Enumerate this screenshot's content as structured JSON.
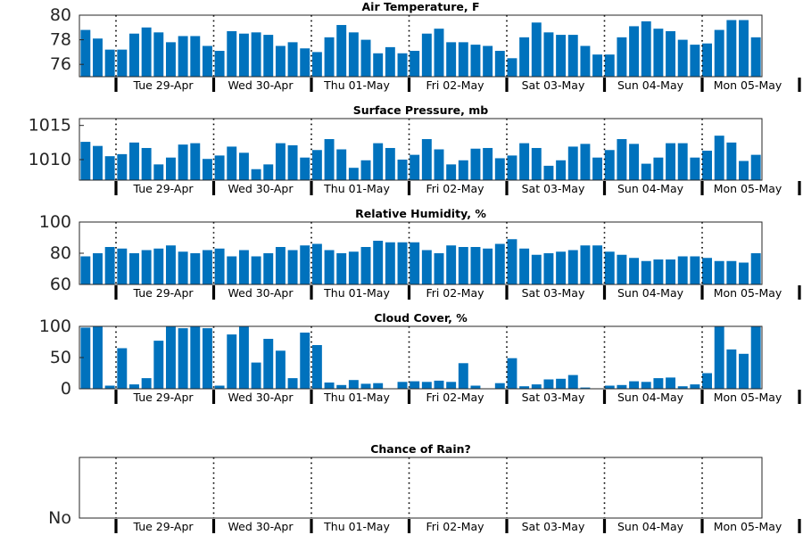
{
  "chart_data": [
    {
      "type": "bar",
      "title": "Air Temperature, F",
      "xlabel": "",
      "ylabel": "",
      "ylim": [
        75,
        80
      ],
      "yticks": [
        76,
        78,
        80
      ],
      "ytick_labels": [
        "76",
        "78",
        "80"
      ],
      "color": "#0072BD",
      "grid": false,
      "day_labels": [
        "Tue 29-Apr",
        "Wed 30-Apr",
        "Thu 01-May",
        "Fri 02-May",
        "Sat 03-May",
        "Sun 04-May",
        "Mon 05-May"
      ],
      "values": [
        78.8,
        78.1,
        77.2,
        77.2,
        78.5,
        79.0,
        78.6,
        77.8,
        78.3,
        78.3,
        77.5,
        77.1,
        78.7,
        78.5,
        78.6,
        78.4,
        77.5,
        77.8,
        77.3,
        77.0,
        78.2,
        79.2,
        78.6,
        78.0,
        76.9,
        77.4,
        76.9,
        77.1,
        78.5,
        78.9,
        77.8,
        77.8,
        77.6,
        77.5,
        77.1,
        76.5,
        78.2,
        79.4,
        78.6,
        78.4,
        78.4,
        77.5,
        76.8,
        76.8,
        78.2,
        79.1,
        79.5,
        78.9,
        78.7,
        78.0,
        77.6,
        77.7,
        78.8,
        79.6,
        79.6,
        78.2
      ]
    },
    {
      "type": "bar",
      "title": "Surface Pressure, mb",
      "xlabel": "",
      "ylabel": "",
      "ylim": [
        1007,
        1016
      ],
      "yticks": [
        1010,
        1015
      ],
      "ytick_labels": [
        "1010",
        "1015"
      ],
      "color": "#0072BD",
      "grid": false,
      "day_labels": [
        "Tue 29-Apr",
        "Wed 30-Apr",
        "Thu 01-May",
        "Fri 02-May",
        "Sat 03-May",
        "Sun 04-May",
        "Mon 05-May"
      ],
      "values": [
        1012.6,
        1012.0,
        1010.5,
        1010.8,
        1012.5,
        1011.7,
        1009.3,
        1010.3,
        1012.2,
        1012.4,
        1010.1,
        1010.6,
        1011.9,
        1011.0,
        1008.6,
        1009.3,
        1012.4,
        1012.1,
        1010.3,
        1011.4,
        1013.0,
        1011.5,
        1008.8,
        1009.9,
        1012.4,
        1011.7,
        1010.0,
        1010.7,
        1013.0,
        1011.5,
        1009.3,
        1009.9,
        1011.6,
        1011.7,
        1010.2,
        1010.6,
        1012.4,
        1011.7,
        1009.1,
        1009.9,
        1011.9,
        1012.3,
        1010.3,
        1011.4,
        1013.0,
        1012.3,
        1009.4,
        1010.3,
        1012.4,
        1012.4,
        1010.3,
        1011.3,
        1013.5,
        1012.5,
        1009.8,
        1010.7
      ]
    },
    {
      "type": "bar",
      "title": "Relative Humidity, %",
      "xlabel": "",
      "ylabel": "",
      "ylim": [
        60,
        100
      ],
      "yticks": [
        60,
        80,
        100
      ],
      "ytick_labels": [
        "60",
        "80",
        "100"
      ],
      "color": "#0072BD",
      "grid": false,
      "day_labels": [
        "Tue 29-Apr",
        "Wed 30-Apr",
        "Thu 01-May",
        "Fri 02-May",
        "Sat 03-May",
        "Sun 04-May",
        "Mon 05-May"
      ],
      "values": [
        78,
        80,
        84,
        83,
        80,
        82,
        83,
        85,
        81,
        80,
        82,
        83,
        78,
        82,
        78,
        80,
        84,
        82,
        85,
        86,
        82,
        80,
        81,
        84,
        88,
        87,
        87,
        87,
        82,
        80,
        85,
        84,
        84,
        83,
        86,
        89,
        83,
        79,
        80,
        81,
        82,
        85,
        85,
        81,
        79,
        77,
        75,
        76,
        76,
        78,
        78,
        77,
        75,
        75,
        74,
        80
      ]
    },
    {
      "type": "bar",
      "title": "Cloud Cover, %",
      "xlabel": "",
      "ylabel": "",
      "ylim": [
        0,
        100
      ],
      "yticks": [
        0,
        50,
        100
      ],
      "ytick_labels": [
        "0",
        "50",
        "100"
      ],
      "color": "#0072BD",
      "grid": false,
      "day_labels": [
        "Tue 29-Apr",
        "Wed 30-Apr",
        "Thu 01-May",
        "Fri 02-May",
        "Sat 03-May",
        "Sun 04-May",
        "Mon 05-May"
      ],
      "values": [
        98,
        100,
        5,
        65,
        7,
        17,
        77,
        100,
        97,
        100,
        97,
        5,
        87,
        100,
        42,
        80,
        61,
        17,
        90,
        70,
        10,
        6,
        14,
        8,
        9,
        0,
        11,
        12,
        11,
        13,
        11,
        41,
        5,
        0,
        9,
        49,
        4,
        7,
        15,
        16,
        22,
        2,
        0,
        5,
        6,
        12,
        11,
        17,
        18,
        4,
        7,
        25,
        100,
        63,
        56,
        100
      ]
    },
    {
      "type": "bar",
      "title": "Chance of Rain?",
      "xlabel": "",
      "ylabel": "",
      "ylim": [
        0,
        1
      ],
      "yticks": [
        0
      ],
      "ytick_labels": [
        "No"
      ],
      "color": "#0072BD",
      "grid": false,
      "day_labels": [
        "Tue 29-Apr",
        "Wed 30-Apr",
        "Thu 01-May",
        "Fri 02-May",
        "Sat 03-May",
        "Sun 04-May",
        "Mon 05-May"
      ],
      "values": []
    }
  ]
}
